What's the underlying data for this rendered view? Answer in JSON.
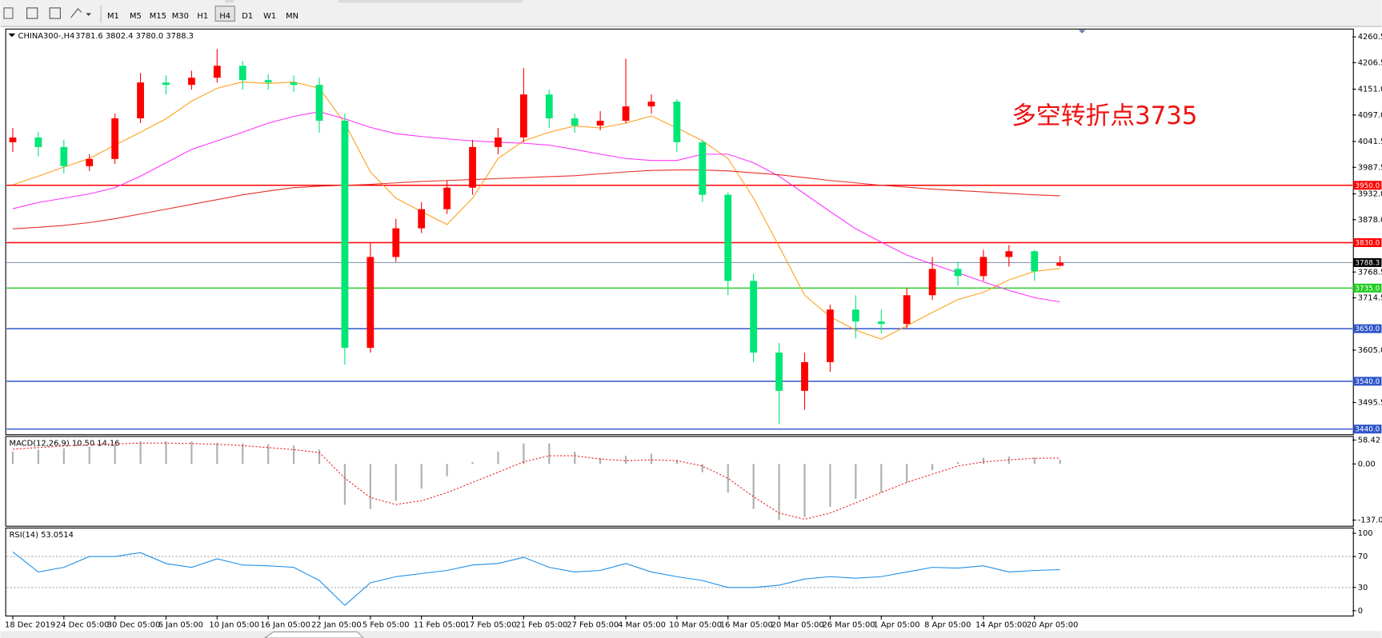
{
  "toolbar": {
    "timeframes": [
      "M1",
      "M5",
      "M15",
      "M30",
      "H1",
      "H4",
      "D1",
      "W1",
      "MN"
    ],
    "active_index": 5
  },
  "chart_data": [
    {
      "type": "candlestick",
      "title": "CHINA300-,H4",
      "subtitle": "3781.6 3802.4 3780.0 3788.3",
      "categories": [
        "18 Dec 2019",
        null,
        "24 Dec 05:00",
        null,
        "30 Dec 05:00",
        null,
        "6 Jan 05:00",
        null,
        "10 Jan 05:00",
        null,
        "16 Jan 05:00",
        null,
        "22 Jan 05:00",
        null,
        "5 Feb 05:00",
        null,
        "11 Feb 05:00",
        null,
        "17 Feb 05:00",
        null,
        "21 Feb 05:00",
        null,
        "27 Feb 05:00",
        null,
        "4 Mar 05:00",
        null,
        "10 Mar 05:00",
        null,
        "16 Mar 05:00",
        null,
        "20 Mar 05:00",
        null,
        "26 Mar 05:00",
        null,
        "1 Apr 05:00",
        null,
        "8 Apr 05:00",
        null,
        "14 Apr 05:00",
        null,
        "20 Apr 05:00",
        null
      ],
      "open": [
        4040,
        4050,
        4030,
        3990,
        4005,
        4090,
        4165,
        4160,
        4175,
        4200,
        4170,
        4165,
        4160,
        4085,
        3610,
        3800,
        3860,
        3900,
        3945,
        4030,
        4050,
        4140,
        4090,
        4075,
        4085,
        4115,
        4125,
        4040,
        3930,
        3750,
        3600,
        3520,
        3580,
        3690,
        3665,
        3660,
        3720,
        3775,
        3760,
        3800,
        3812,
        3781.6
      ],
      "high": [
        4070,
        4062,
        4045,
        4015,
        4100,
        4185,
        4180,
        4190,
        4235,
        4210,
        4182,
        4180,
        4175,
        4100,
        3830,
        3880,
        3915,
        3960,
        4045,
        4070,
        4195,
        4150,
        4100,
        4105,
        4215,
        4140,
        4130,
        4045,
        3935,
        3765,
        3620,
        3600,
        3700,
        3720,
        3690,
        3735,
        3800,
        3790,
        3815,
        3825,
        3815,
        3802.4
      ],
      "low": [
        4020,
        4010,
        3975,
        3980,
        3995,
        4080,
        4140,
        4150,
        4165,
        4150,
        4150,
        4145,
        4060,
        3575,
        3600,
        3790,
        3850,
        3890,
        3930,
        4015,
        4040,
        4070,
        4060,
        4065,
        4080,
        4100,
        4020,
        3915,
        3720,
        3580,
        3450,
        3480,
        3560,
        3630,
        3640,
        3650,
        3710,
        3740,
        3750,
        3780,
        3750,
        3780
      ],
      "close": [
        4050,
        4030,
        3990,
        4005,
        4090,
        4165,
        4160,
        4175,
        4200,
        4170,
        4165,
        4160,
        4085,
        3610,
        3800,
        3860,
        3900,
        3945,
        4030,
        4050,
        4140,
        4090,
        4075,
        4085,
        4115,
        4125,
        4040,
        3930,
        3750,
        3600,
        3520,
        3580,
        3690,
        3665,
        3660,
        3720,
        3775,
        3760,
        3800,
        3812,
        3770,
        3788.3
      ],
      "up_color": "#ff0000",
      "down_color": "#00e676",
      "series": [
        {
          "color": "#ffa020",
          "values": [
            3951,
            3969,
            3988,
            4006,
            4034,
            4061,
            4089,
            4126,
            4153,
            4166,
            4163,
            4166,
            4153,
            4080,
            3978,
            3923,
            3895,
            3868,
            3923,
            4006,
            4043,
            4061,
            4074,
            4070,
            4080,
            4095,
            4070,
            4043,
            4006,
            3923,
            3822,
            3720,
            3675,
            3647,
            3628,
            3656,
            3684,
            3711,
            3726,
            3752,
            3770,
            3776
          ]
        },
        {
          "color": "#ff33ff",
          "values": [
            3901,
            3914,
            3923,
            3932,
            3945,
            3969,
            3997,
            4025,
            4043,
            4061,
            4080,
            4094,
            4104,
            4089,
            4071,
            4058,
            4052,
            4047,
            4043,
            4040,
            4038,
            4034,
            4025,
            4015,
            4006,
            4002,
            4002,
            4015,
            4015,
            3997,
            3969,
            3932,
            3895,
            3859,
            3831,
            3804,
            3785,
            3767,
            3748,
            3730,
            3715,
            3706
          ]
        },
        {
          "color": "#e8302a",
          "values": [
            3859,
            3862,
            3866,
            3872,
            3880,
            3890,
            3900,
            3910,
            3920,
            3930,
            3938,
            3945,
            3948,
            3950,
            3952,
            3955,
            3958,
            3960,
            3962,
            3964,
            3966,
            3968,
            3970,
            3974,
            3978,
            3981,
            3982,
            3982,
            3980,
            3976,
            3972,
            3966,
            3960,
            3955,
            3950,
            3946,
            3942,
            3939,
            3936,
            3933,
            3930,
            3928
          ]
        }
      ],
      "ylim": [
        3430,
        4275
      ],
      "yticks": [
        4260.5,
        4206.5,
        {
          "value": 4151,
          "label": "4151.0"
        },
        {
          "value": 4097,
          "label": "4097.0"
        },
        4041.5,
        3987.5,
        {
          "value": 3932,
          "label": "3932.0"
        },
        {
          "value": 3878,
          "label": "3878.0"
        },
        3768.5,
        3714.5,
        {
          "value": 3605,
          "label": "3605.0"
        },
        3495.5
      ],
      "levels": [
        {
          "value": 3950,
          "label": "3950.0",
          "color": "#ff0000"
        },
        {
          "value": 3830,
          "label": "3830.0",
          "color": "#ff0000"
        },
        {
          "value": 3735,
          "label": "3735.0",
          "color": "#22cc22"
        },
        {
          "value": 3650,
          "label": "3650.0",
          "color": "#2f55c8"
        },
        {
          "value": 3540,
          "label": "3540.0",
          "color": "#2f55c8"
        },
        {
          "value": 3440,
          "label": "3440.0",
          "color": "#2f55c8"
        }
      ],
      "last_price": 3788.3,
      "annotation": {
        "text": "多空转折点3735",
        "color": "#ee1111"
      }
    },
    {
      "type": "macd",
      "title": "MACD(12,26,9) 10.50 14.16",
      "values": [
        30,
        35,
        38,
        42,
        48,
        55,
        55,
        55,
        52,
        50,
        48,
        45,
        35,
        -100,
        -110,
        -90,
        -60,
        -30,
        5,
        30,
        50,
        50,
        30,
        15,
        20,
        25,
        10,
        -20,
        -70,
        -110,
        -137,
        -130,
        -105,
        -85,
        -70,
        -45,
        -15,
        5,
        15,
        18,
        15,
        10.5
      ],
      "color": "#b0b0b0",
      "signal": {
        "color": "#ee2020",
        "values": [
          36,
          40,
          44,
          47,
          49,
          51,
          51,
          50,
          48,
          45,
          40,
          35,
          28,
          -35,
          -82,
          -99,
          -90,
          -70,
          -45,
          -20,
          5,
          20,
          20,
          12,
          8,
          10,
          8,
          -5,
          -35,
          -80,
          -120,
          -135,
          -120,
          -95,
          -70,
          -45,
          -25,
          -5,
          5,
          10,
          14,
          14.16
        ]
      },
      "ylim": [
        -150,
        65
      ],
      "yticks": [
        58.42,
        {
          "value": 0,
          "label": "0.00"
        },
        -137.09
      ]
    },
    {
      "type": "line",
      "title": "RSI(14) 53.0514",
      "values": [
        76,
        50,
        56,
        70,
        70,
        75,
        61,
        56,
        67,
        59,
        58,
        56,
        39,
        7,
        36,
        44,
        48,
        52,
        59,
        61,
        69,
        56,
        50,
        52,
        61,
        50,
        44,
        39,
        30,
        30,
        33,
        41,
        44,
        42,
        44,
        50,
        56,
        55,
        58,
        50,
        52,
        53.0514
      ],
      "color": "#1e8fe8",
      "ylim": [
        0,
        100
      ],
      "yticks": [
        100,
        70,
        30,
        0
      ],
      "levels": [
        70,
        30
      ]
    }
  ]
}
